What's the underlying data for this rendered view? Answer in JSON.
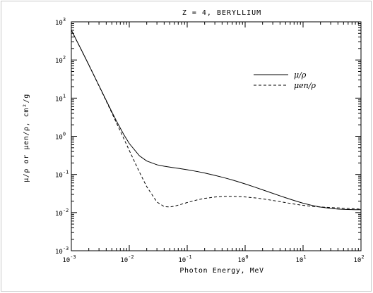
{
  "chart_data": {
    "type": "line",
    "title": "Z =  4,  BERYLLIUM",
    "xlabel": "Photon Energy, MeV",
    "ylabel": "μ/ρ  or  μen/ρ,  cm²/g",
    "x_scale": "log",
    "y_scale": "log",
    "xlim": [
      0.001,
      100
    ],
    "ylim": [
      0.001,
      1000
    ],
    "x_ticks": [
      {
        "base": "10",
        "exp": "-3"
      },
      {
        "base": "10",
        "exp": "-2"
      },
      {
        "base": "10",
        "exp": "-1"
      },
      {
        "base": "10",
        "exp": "0"
      },
      {
        "base": "10",
        "exp": "1"
      },
      {
        "base": "10",
        "exp": "2"
      }
    ],
    "y_ticks": [
      {
        "base": "10",
        "exp": "-3"
      },
      {
        "base": "10",
        "exp": "-2"
      },
      {
        "base": "10",
        "exp": "-1"
      },
      {
        "base": "10",
        "exp": "0"
      },
      {
        "base": "10",
        "exp": "1"
      },
      {
        "base": "10",
        "exp": "2"
      },
      {
        "base": "10",
        "exp": "3"
      }
    ],
    "grid": false,
    "legend_position": "upper-right",
    "series": [
      {
        "name": "μ/ρ",
        "style": "solid",
        "x": [
          0.001,
          0.0015,
          0.002,
          0.003,
          0.004,
          0.005,
          0.006,
          0.008,
          0.01,
          0.015,
          0.02,
          0.03,
          0.04,
          0.05,
          0.06,
          0.08,
          0.1,
          0.15,
          0.2,
          0.3,
          0.4,
          0.5,
          0.6,
          0.8,
          1.0,
          1.5,
          2.0,
          3.0,
          4.0,
          5.0,
          6.0,
          8.0,
          10.0,
          15.0,
          20.0,
          30.0,
          40.0,
          50.0,
          60.0,
          80.0,
          100.0
        ],
        "y": [
          604.1,
          179.7,
          74.69,
          21.27,
          8.685,
          4.369,
          2.527,
          1.124,
          0.6466,
          0.307,
          0.2251,
          0.1792,
          0.164,
          0.1554,
          0.1493,
          0.1401,
          0.1328,
          0.119,
          0.1089,
          0.09463,
          0.08471,
          0.07739,
          0.07155,
          0.06286,
          0.05652,
          0.04597,
          0.03948,
          0.03196,
          0.02748,
          0.0245,
          0.02236,
          0.01947,
          0.01763,
          0.01516,
          0.01398,
          0.01287,
          0.01237,
          0.01212,
          0.01199,
          0.01188,
          0.01187
        ]
      },
      {
        "name": "μen/ρ",
        "style": "dashed",
        "x": [
          0.001,
          0.0015,
          0.002,
          0.003,
          0.004,
          0.005,
          0.006,
          0.008,
          0.01,
          0.015,
          0.02,
          0.03,
          0.04,
          0.05,
          0.06,
          0.08,
          0.1,
          0.15,
          0.2,
          0.3,
          0.4,
          0.5,
          0.6,
          0.8,
          1.0,
          1.5,
          2.0,
          3.0,
          4.0,
          5.0,
          6.0,
          8.0,
          10.0,
          15.0,
          20.0,
          30.0,
          40.0,
          50.0,
          60.0,
          80.0,
          100.0
        ],
        "y": [
          603.5,
          179.1,
          74.22,
          20.9,
          8.367,
          4.081,
          2.26,
          0.8839,
          0.4255,
          0.1143,
          0.0478,
          0.01898,
          0.01438,
          0.01401,
          0.01468,
          0.01658,
          0.01836,
          0.02157,
          0.02355,
          0.02557,
          0.0264,
          0.02666,
          0.02663,
          0.02627,
          0.0257,
          0.02424,
          0.02292,
          0.02083,
          0.01935,
          0.01826,
          0.01741,
          0.01624,
          0.01548,
          0.01448,
          0.01403,
          0.01355,
          0.01327,
          0.01305,
          0.01287,
          0.01255,
          0.01227
        ]
      }
    ]
  }
}
